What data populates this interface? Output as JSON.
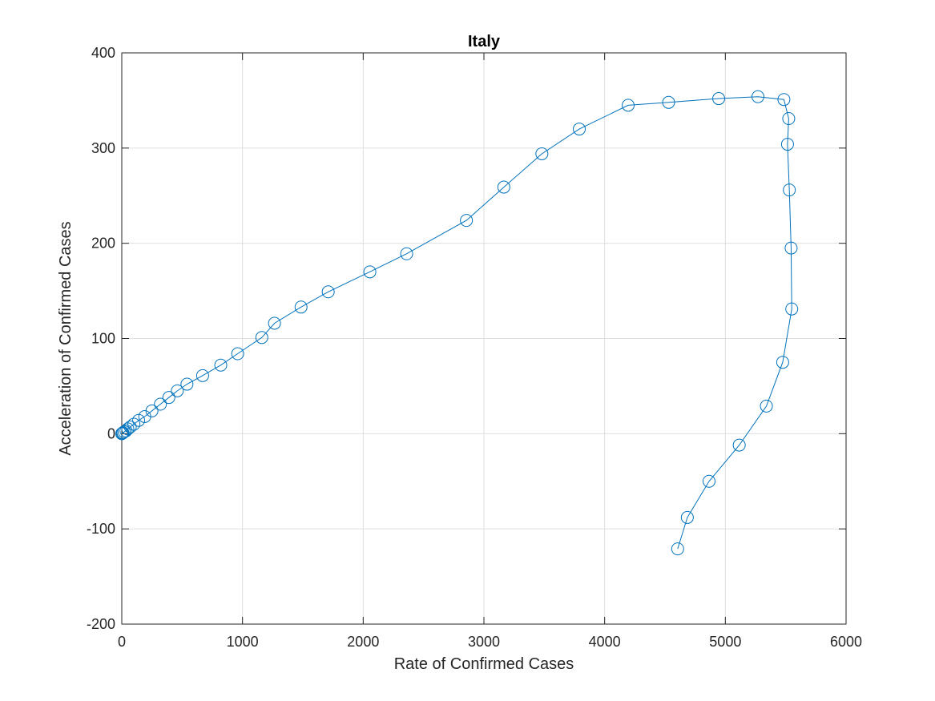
{
  "chart_data": {
    "type": "line",
    "title": "Italy",
    "xlabel": "Rate of Confirmed Cases",
    "ylabel": "Acceleration of Confirmed Cases",
    "xlim": [
      0,
      6000
    ],
    "ylim": [
      -200,
      400
    ],
    "xticks": [
      0,
      1000,
      2000,
      3000,
      4000,
      5000,
      6000
    ],
    "yticks": [
      -200,
      -100,
      0,
      100,
      200,
      300,
      400
    ],
    "grid": true,
    "marker": "circle-open",
    "line_color": "#0072BD",
    "series": [
      {
        "x": [
          0,
          5,
          10,
          20,
          35,
          50,
          70,
          100,
          140,
          190,
          250,
          320,
          390,
          460,
          540,
          670,
          820,
          960,
          1160,
          1265,
          1485,
          1710,
          2055,
          2360,
          2855,
          3165,
          3480,
          3790,
          4195,
          4530,
          4945,
          5270,
          5485,
          5525,
          5515,
          5530,
          5545,
          5550,
          5475,
          5340,
          5115,
          4865,
          4685,
          4605
        ],
        "y": [
          0,
          0.5,
          1,
          2,
          3,
          5,
          7,
          10,
          14,
          18,
          24,
          31,
          38,
          45,
          52,
          61,
          72,
          84,
          101,
          116,
          133,
          149,
          170,
          189,
          224,
          259,
          294,
          320,
          345,
          348,
          352,
          354,
          351,
          331,
          304,
          256,
          195,
          131,
          75,
          29,
          -12,
          -50,
          -88,
          -121
        ]
      }
    ]
  }
}
